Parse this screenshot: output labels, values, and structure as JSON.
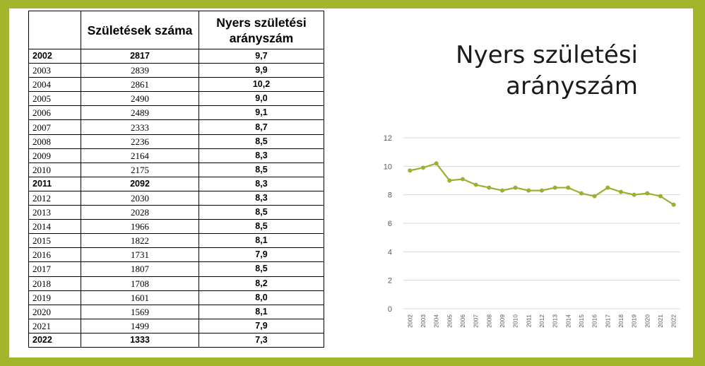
{
  "table": {
    "headers": [
      "",
      "Születések száma",
      "Nyers születési arányszám"
    ],
    "rows": [
      {
        "year": "2002",
        "births": "2817",
        "rate": "9,7",
        "bold": true
      },
      {
        "year": "2003",
        "births": "2839",
        "rate": "9,9",
        "bold": false
      },
      {
        "year": "2004",
        "births": "2861",
        "rate": "10,2",
        "bold": false
      },
      {
        "year": "2005",
        "births": "2490",
        "rate": "9,0",
        "bold": false
      },
      {
        "year": "2006",
        "births": "2489",
        "rate": "9,1",
        "bold": false
      },
      {
        "year": "2007",
        "births": "2333",
        "rate": "8,7",
        "bold": false
      },
      {
        "year": "2008",
        "births": "2236",
        "rate": "8,5",
        "bold": false
      },
      {
        "year": "2009",
        "births": "2164",
        "rate": "8,3",
        "bold": false
      },
      {
        "year": "2010",
        "births": "2175",
        "rate": "8,5",
        "bold": false
      },
      {
        "year": "2011",
        "births": "2092",
        "rate": "8,3",
        "bold": true
      },
      {
        "year": "2012",
        "births": "2030",
        "rate": "8,3",
        "bold": false
      },
      {
        "year": "2013",
        "births": "2028",
        "rate": "8,5",
        "bold": false
      },
      {
        "year": "2014",
        "births": "1966",
        "rate": "8,5",
        "bold": false
      },
      {
        "year": "2015",
        "births": "1822",
        "rate": "8,1",
        "bold": false
      },
      {
        "year": "2016",
        "births": "1731",
        "rate": "7,9",
        "bold": false
      },
      {
        "year": "2017",
        "births": "1807",
        "rate": "8,5",
        "bold": false
      },
      {
        "year": "2018",
        "births": "1708",
        "rate": "8,2",
        "bold": false
      },
      {
        "year": "2019",
        "births": "1601",
        "rate": "8,0",
        "bold": false
      },
      {
        "year": "2020",
        "births": "1569",
        "rate": "8,1",
        "bold": false
      },
      {
        "year": "2021",
        "births": "1499",
        "rate": "7,9",
        "bold": false
      },
      {
        "year": "2022",
        "births": "1333",
        "rate": "7,3",
        "bold": true
      }
    ]
  },
  "chart_title_lines": [
    "Nyers születési",
    "arányszám"
  ],
  "chart_data": {
    "type": "line",
    "title": "Nyers születési arányszám",
    "xlabel": "",
    "ylabel": "",
    "categories": [
      "2002",
      "2003",
      "2004",
      "2005",
      "2006",
      "2007",
      "2008",
      "2009",
      "2010",
      "2011",
      "2012",
      "2013",
      "2014",
      "2015",
      "2016",
      "2017",
      "2018",
      "2019",
      "2020",
      "2021",
      "2022"
    ],
    "values": [
      9.7,
      9.9,
      10.2,
      9.0,
      9.1,
      8.7,
      8.5,
      8.3,
      8.5,
      8.3,
      8.3,
      8.5,
      8.5,
      8.1,
      7.9,
      8.5,
      8.2,
      8.0,
      8.1,
      7.9,
      7.3
    ],
    "ylim": [
      0,
      12
    ],
    "yticks": [
      0,
      2,
      4,
      6,
      8,
      10,
      12
    ],
    "grid": true,
    "legend": "none"
  },
  "colors": {
    "frame": "#a3b52a",
    "line": "#9cb030",
    "grid": "#d9d9d9",
    "axis_text": "#595959"
  }
}
